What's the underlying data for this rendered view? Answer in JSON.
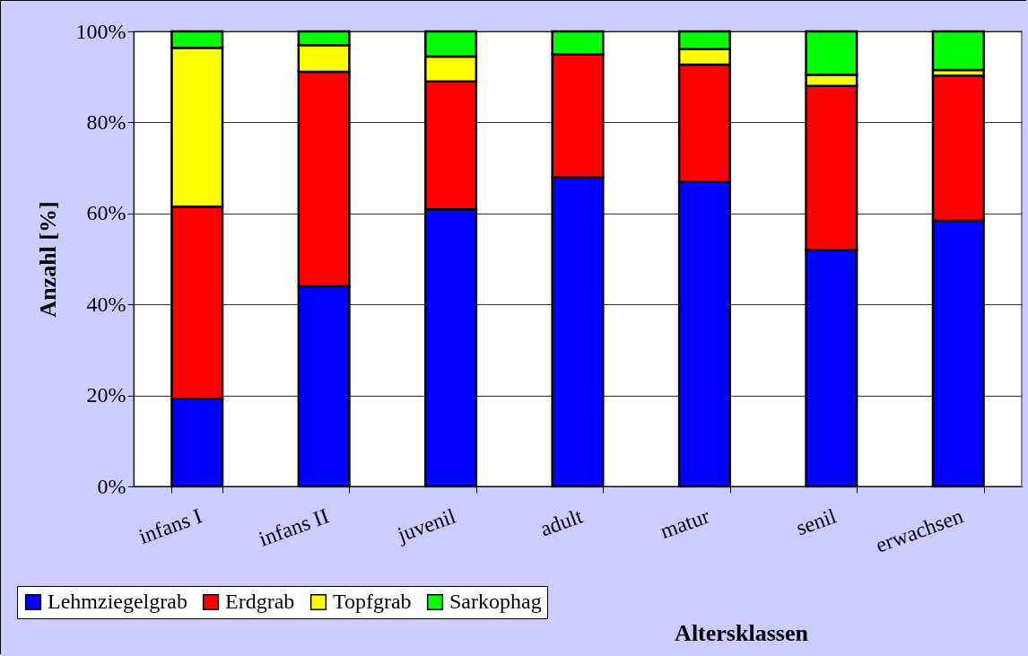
{
  "chart_data": {
    "type": "bar",
    "stacked": true,
    "xlabel": "Altersklassen",
    "ylabel": "Anzahl [%]",
    "categories": [
      "infans I",
      "infans II",
      "juvenil",
      "adult",
      "matur",
      "senil",
      "erwachsen"
    ],
    "series": [
      {
        "name": "Lehmziegelgrab",
        "color": "#0000ff",
        "values": [
          19.3,
          44.0,
          60.9,
          67.9,
          66.9,
          51.9,
          58.4
        ]
      },
      {
        "name": "Erdgrab",
        "color": "#ff0000",
        "values": [
          42.2,
          47.1,
          28.1,
          27.0,
          25.8,
          36.1,
          31.9
        ]
      },
      {
        "name": "Topfgrab",
        "color": "#ffff00",
        "values": [
          34.9,
          5.9,
          5.5,
          0,
          3.4,
          2.5,
          1.2
        ]
      },
      {
        "name": "Sarkophag",
        "color": "#00ff00",
        "values": [
          3.6,
          3.0,
          5.5,
          5.1,
          3.9,
          9.5,
          8.5
        ]
      }
    ],
    "ylim": [
      0,
      100
    ],
    "yticks": [
      {
        "value": 0,
        "label": "0%"
      },
      {
        "value": 20,
        "label": "20%"
      },
      {
        "value": 40,
        "label": "40%"
      },
      {
        "value": 60,
        "label": "60%"
      },
      {
        "value": 80,
        "label": "80%"
      },
      {
        "value": 100,
        "label": "100%"
      }
    ],
    "grid": "y",
    "legend": "bottom left"
  }
}
